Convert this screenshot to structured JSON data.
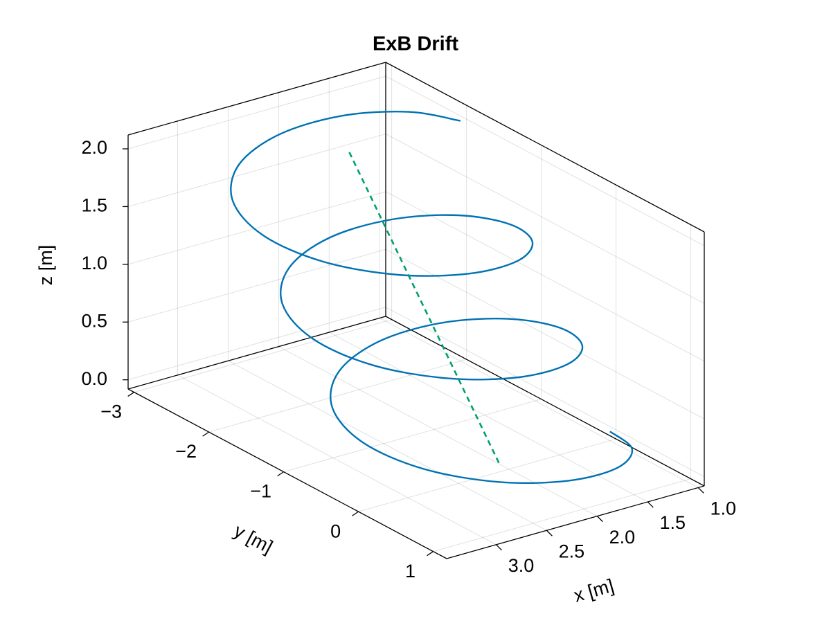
{
  "chart_data": {
    "type": "line3d",
    "title": "ExB Drift",
    "xlabel": "x [m]",
    "ylabel": "y [m]",
    "zlabel": "z [m]",
    "xlim": [
      3.49,
      0.94
    ],
    "ylim": [
      1.18,
      -3.08
    ],
    "zlim": [
      -0.08,
      2.12
    ],
    "xticks": [
      {
        "value": 1,
        "label": "1.0"
      },
      1.5,
      {
        "value": 2,
        "label": "2.0"
      },
      2.5,
      {
        "value": 3,
        "label": "3.0"
      }
    ],
    "yticks": [
      {
        "value": -3,
        "label": "−3"
      },
      {
        "value": -2,
        "label": "−2"
      },
      {
        "value": -1,
        "label": "−1"
      },
      0,
      1
    ],
    "zticks": [
      {
        "value": 0,
        "label": "0.0"
      },
      0.5,
      {
        "value": 1,
        "label": "1.0"
      },
      1.5,
      {
        "value": 2,
        "label": "2.0"
      }
    ],
    "grid": true,
    "series": [
      {
        "color": "#0072b2",
        "dash": false,
        "x": [
          1.0,
          1.147,
          1.55,
          2.1,
          2.65,
          3.053,
          3.2,
          3.053,
          2.65,
          2.1,
          1.55,
          1.147,
          1.0,
          1.147,
          1.55,
          2.1,
          2.65,
          3.053,
          3.2,
          3.053,
          2.65,
          2.1,
          1.55,
          1.147,
          1.0,
          1.147,
          1.55,
          2.1,
          2.65,
          3.053,
          3.2,
          3.053,
          2.65,
          2.1,
          1.55,
          1.147,
          1.0
        ],
        "y": [
          0,
          0.494,
          0.842,
          0.933,
          0.731,
          0.272,
          -0.333,
          -0.939,
          -1.397,
          -1.6,
          -1.509,
          -1.161,
          -0.667,
          -0.172,
          0.175,
          0.267,
          0.064,
          -0.394,
          -1,
          -1.606,
          -2.064,
          -2.267,
          -2.175,
          -1.828,
          -1.333,
          -0.839,
          -0.491,
          -0.4,
          -0.603,
          -1.061,
          -1.667,
          -2.272,
          -2.731,
          -2.933,
          -2.842,
          -2.494,
          -2
        ],
        "z": [
          0,
          0.056,
          0.111,
          0.167,
          0.222,
          0.278,
          0.333,
          0.389,
          0.444,
          0.5,
          0.556,
          0.611,
          0.667,
          0.722,
          0.778,
          0.833,
          0.889,
          0.944,
          1,
          1.056,
          1.111,
          1.167,
          1.222,
          1.278,
          1.333,
          1.389,
          1.444,
          1.5,
          1.556,
          1.611,
          1.667,
          1.722,
          1.778,
          1.833,
          1.889,
          1.944,
          2
        ]
      },
      {
        "color": "#009e73",
        "dash": true,
        "x": [
          2.1,
          2.1
        ],
        "y": [
          0,
          -2
        ],
        "z": [
          0,
          2
        ]
      }
    ]
  }
}
